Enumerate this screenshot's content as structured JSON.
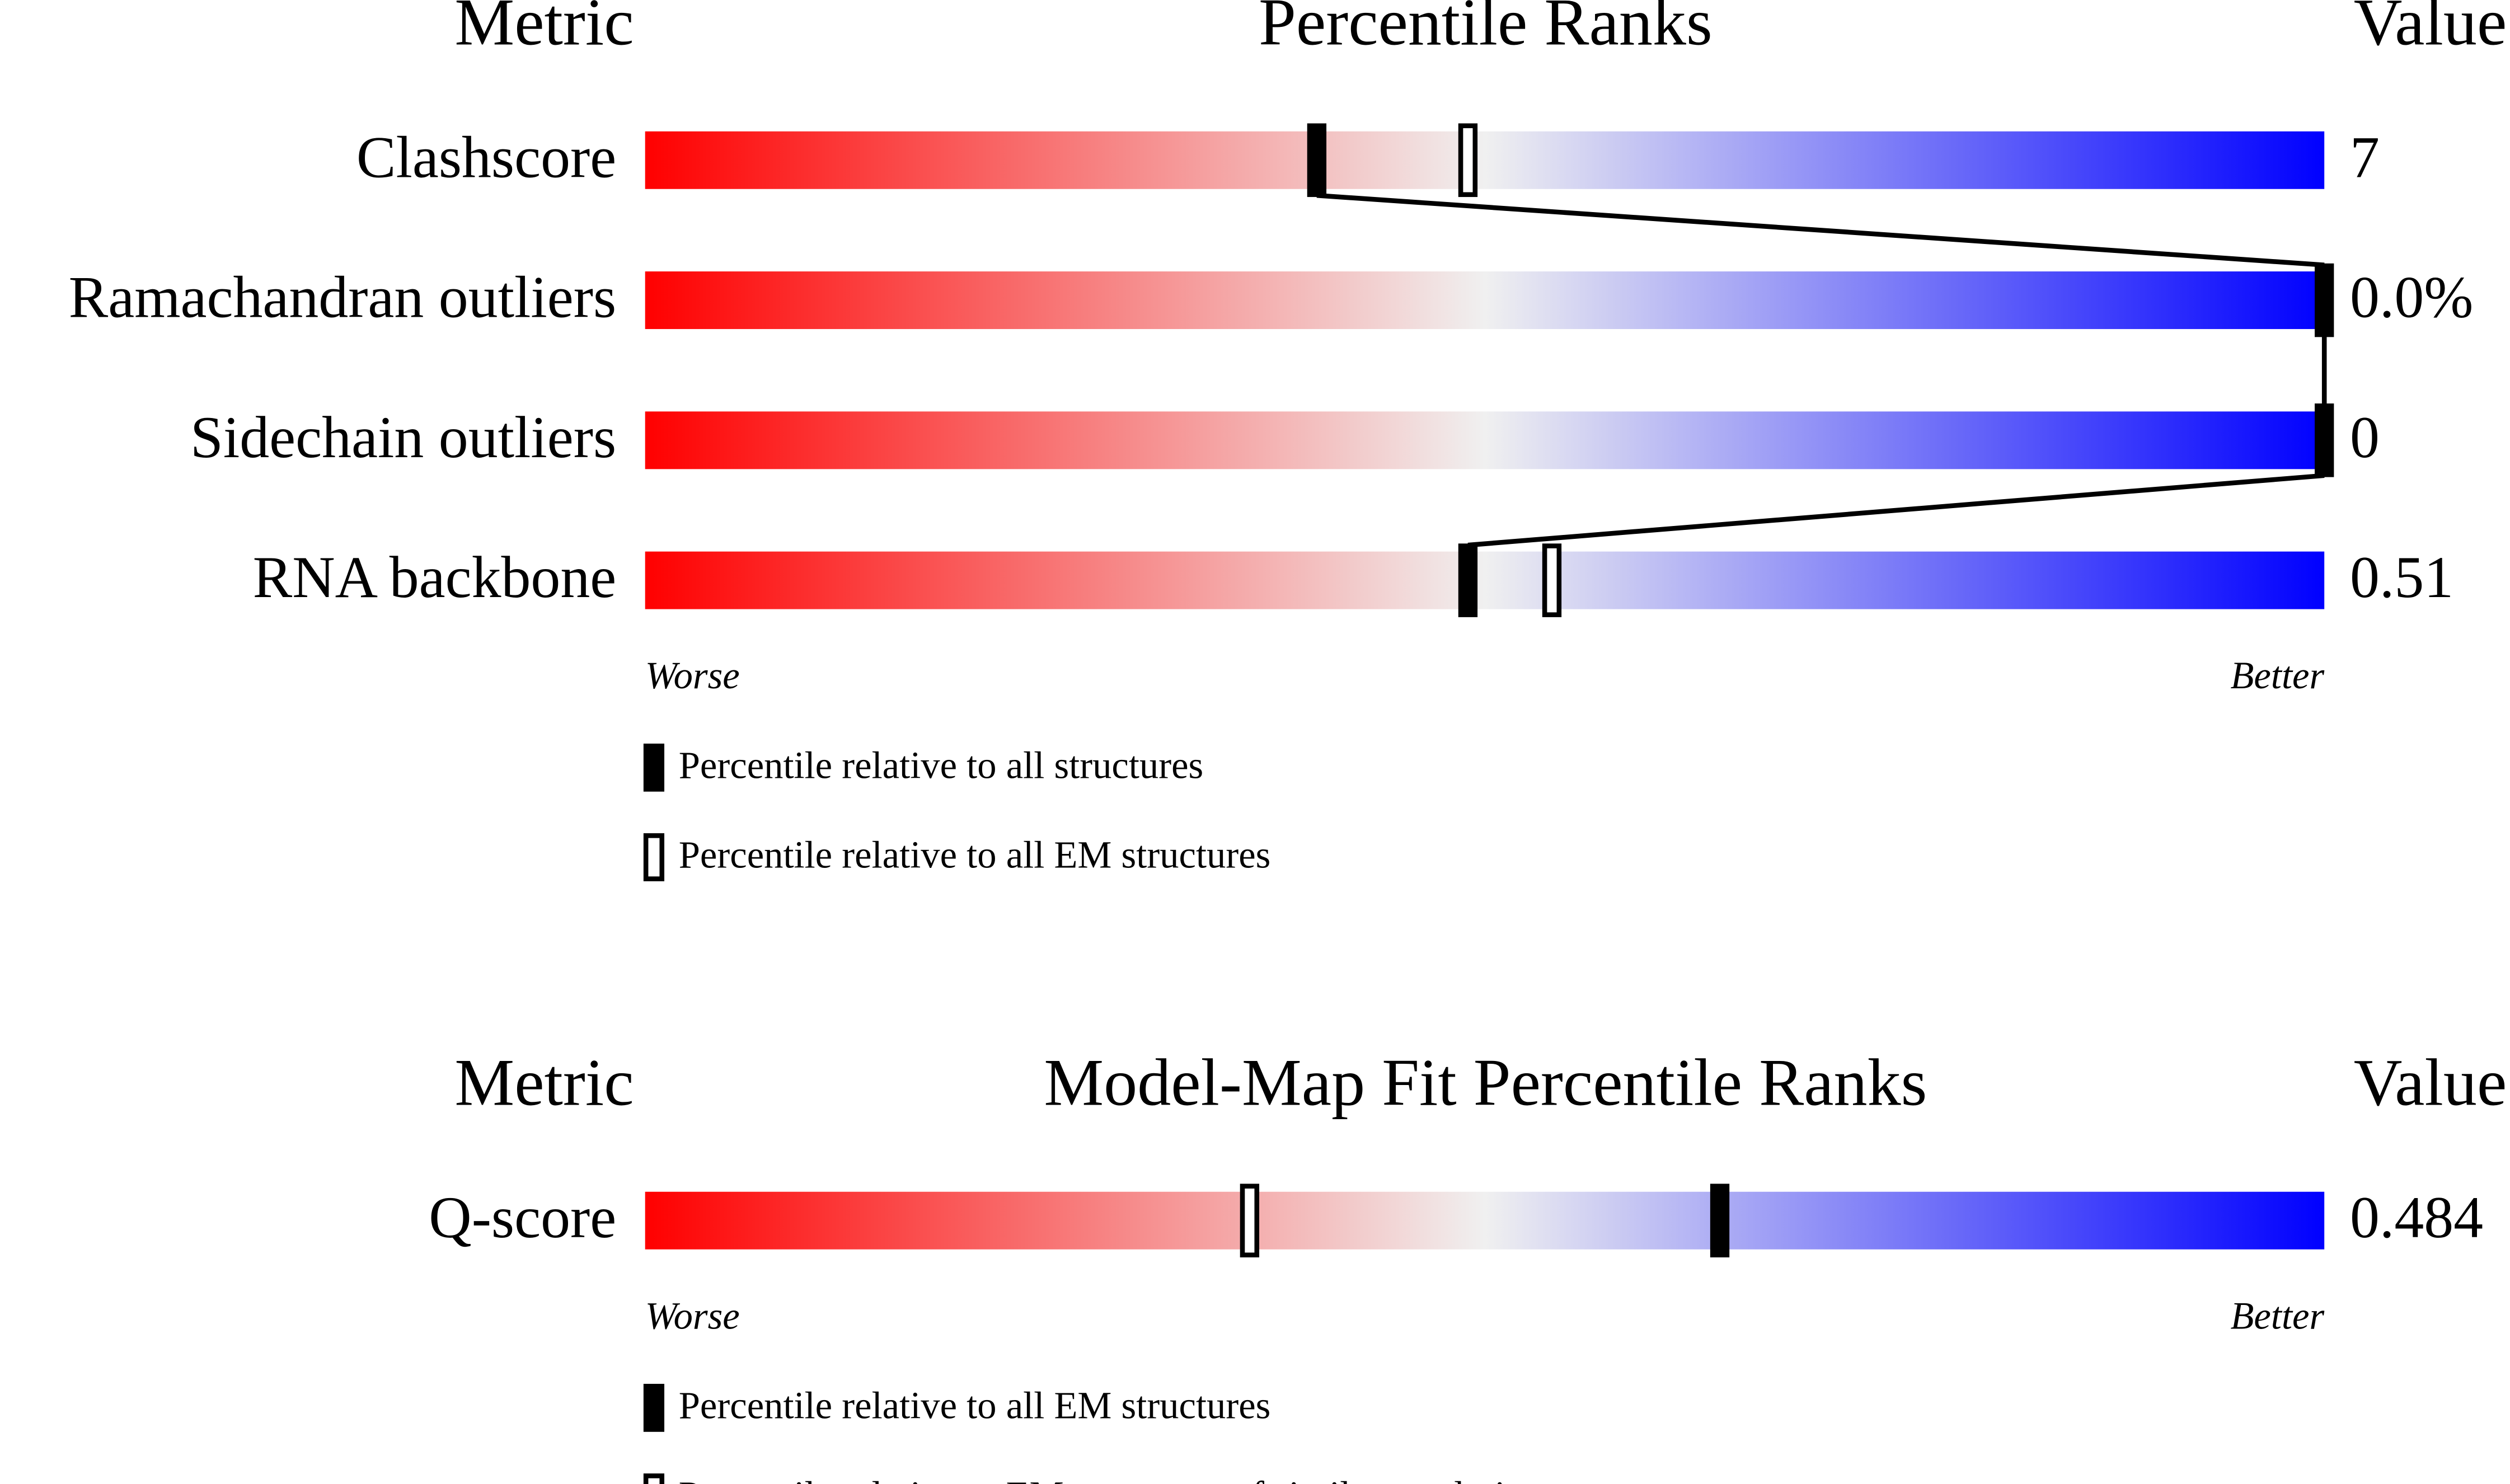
{
  "chart_data": [
    {
      "type": "percentile-slider",
      "metric_header": "Metric",
      "title": "Percentile Ranks",
      "value_header": "Value",
      "categories": [
        "Clashscore",
        "Ramachandran outliers",
        "Sidechain outliers",
        "RNA backbone"
      ],
      "metric_values": [
        "7",
        "0.0%",
        "0",
        "0.51"
      ],
      "series": [
        {
          "name": "Percentile relative to all structures",
          "style": "filled",
          "connected": true,
          "values": [
            40,
            100,
            100,
            49
          ]
        },
        {
          "name": "Percentile relative to all EM structures",
          "style": "open",
          "connected": false,
          "values": [
            49,
            null,
            null,
            54
          ]
        }
      ],
      "xlim": [
        0,
        100
      ],
      "worse": "Worse",
      "better": "Better",
      "colors": [
        "#ff0000",
        "#f0f0f0",
        "#0000ff"
      ]
    },
    {
      "type": "percentile-slider",
      "metric_header": "Metric",
      "title": "Model-Map Fit Percentile Ranks",
      "value_header": "Value",
      "categories": [
        "Q-score"
      ],
      "metric_values": [
        "0.484"
      ],
      "series": [
        {
          "name": "Percentile relative to all EM structures",
          "style": "filled",
          "connected": true,
          "values": [
            64
          ]
        },
        {
          "name": "Percentile relative to EM structures of similar resolution",
          "style": "open",
          "connected": false,
          "values": [
            36
          ]
        }
      ],
      "xlim": [
        0,
        100
      ],
      "worse": "Worse",
      "better": "Better",
      "colors": [
        "#ff0000",
        "#f0f0f0",
        "#0000ff"
      ]
    }
  ]
}
